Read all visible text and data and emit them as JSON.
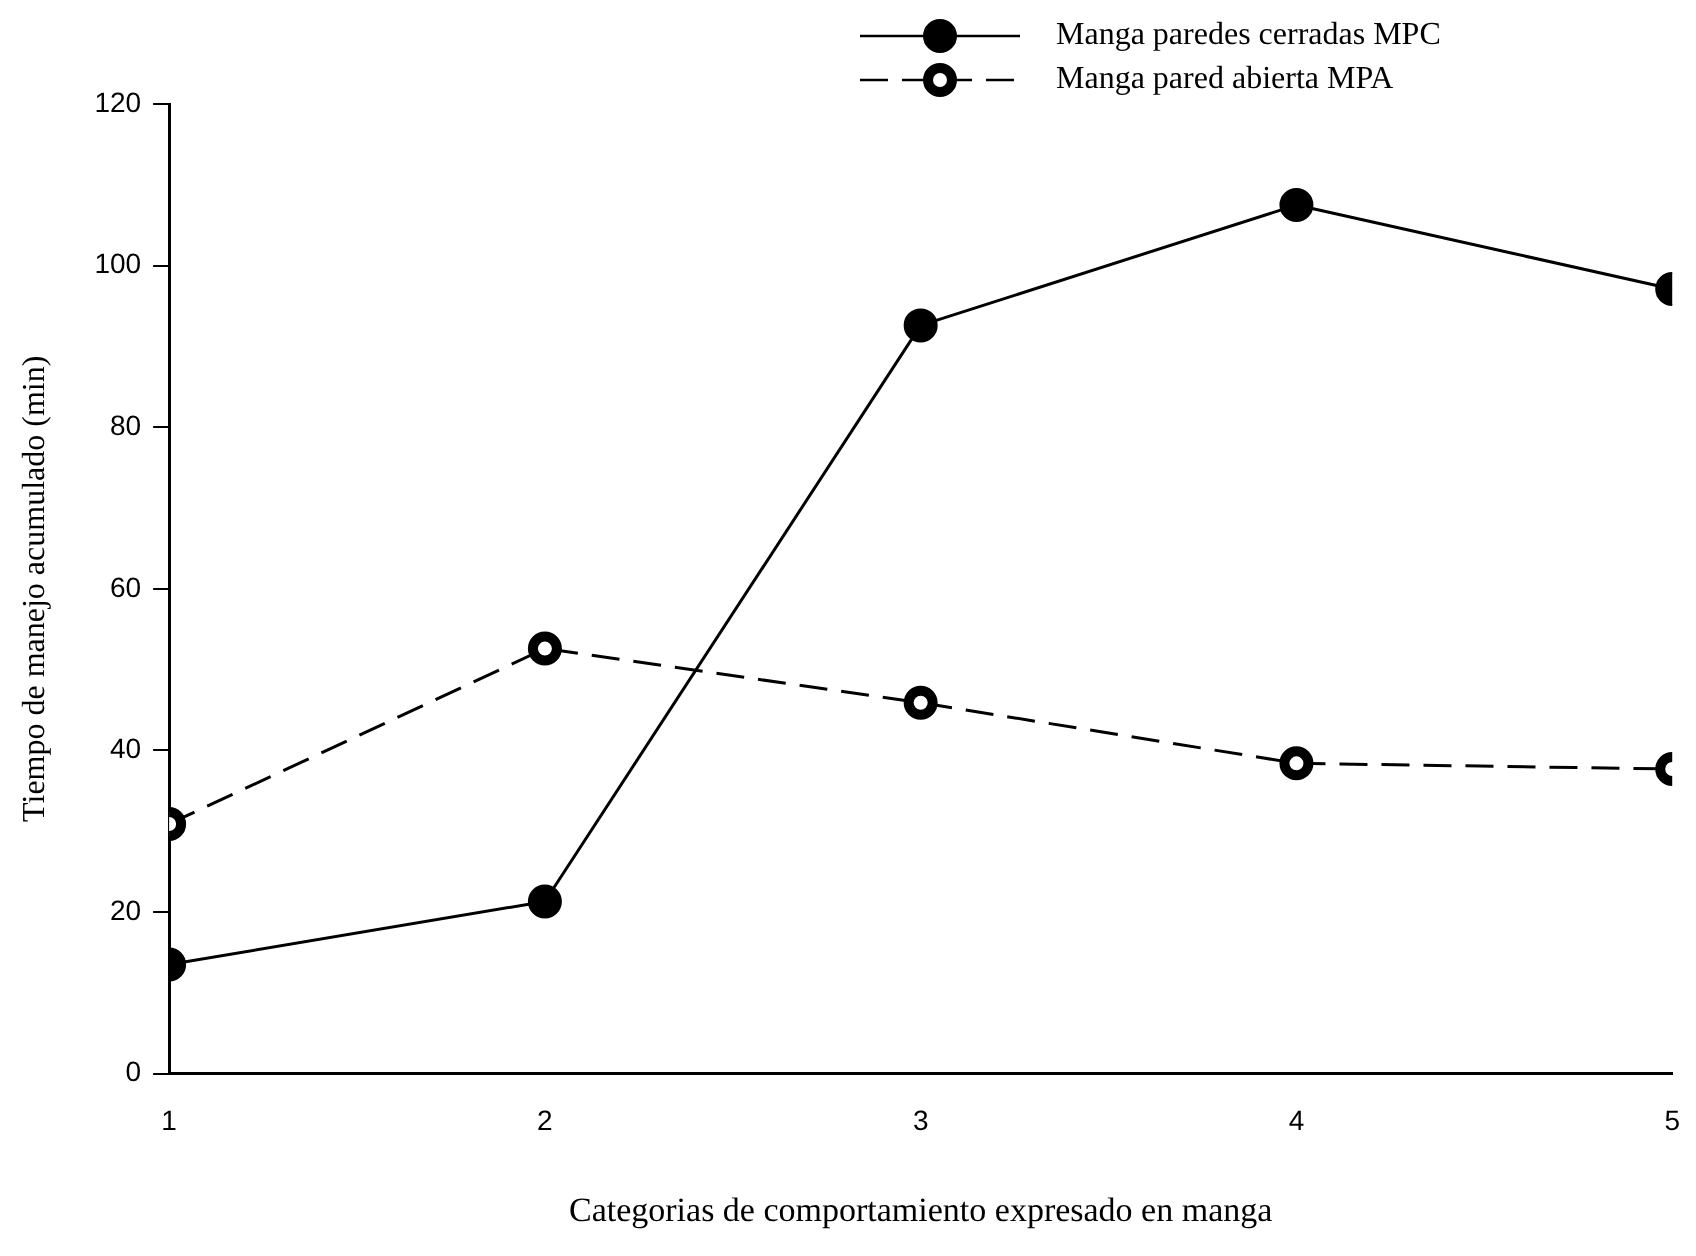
{
  "chart_data": {
    "type": "line",
    "xlabel": "Categorias de comportamiento expresado en manga",
    "ylabel": "Tiempo de manejo acumulado (min)",
    "x": [
      1,
      2,
      3,
      4,
      5
    ],
    "xlim": [
      1,
      5
    ],
    "xticks": [
      1,
      2,
      3,
      4,
      5
    ],
    "ylim": [
      0,
      120
    ],
    "yticks": [
      0,
      20,
      40,
      60,
      80,
      100,
      120
    ],
    "series": [
      {
        "name": "Manga paredes cerradas MPC",
        "color": "#000000",
        "line_style": "solid",
        "values": [
          13.5,
          21.3,
          92.6,
          107.5,
          97.1
        ]
      },
      {
        "name": "Manga pared abierta MPA",
        "color": "#000000",
        "line_style": "dashed",
        "values": [
          30.9,
          52.6,
          45.9,
          38.4,
          37.7
        ]
      }
    ],
    "marker": "circle",
    "grid": false,
    "legend": "top right"
  }
}
